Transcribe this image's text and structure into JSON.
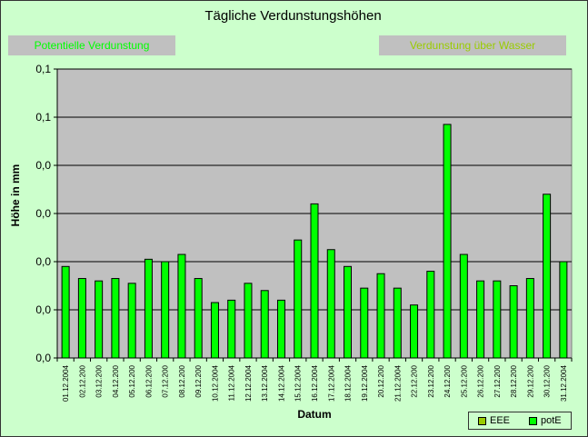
{
  "chart_data": {
    "type": "bar",
    "title": "Tägliche Verdunstungshöhen",
    "xlabel": "Datum",
    "ylabel": "Höhe in mm",
    "annotations": [
      "Potentielle Verdunstung",
      "Verdunstung über Wasser"
    ],
    "ylim": [
      0,
      0.12
    ],
    "ytick_labels": [
      "0,0",
      "0,0",
      "0,0",
      "0,0",
      "0,0",
      "0,1",
      "0,1"
    ],
    "grid": true,
    "legend_position": "bottom-right",
    "categories": [
      "01.12.2004",
      "02.12.200",
      "03.12.200",
      "04.12.200",
      "05.12.200",
      "06.12.200",
      "07.12.200",
      "08.12.200",
      "09.12.200",
      "10.12.2004",
      "11.12.2004",
      "12.12.2004",
      "13.12.2004",
      "14.12.2004",
      "15.12.2004",
      "16.12.2004",
      "17.12.2004",
      "18.12.2004",
      "19.12.2004",
      "20.12.200",
      "21.12.2004",
      "22.12.200",
      "23.12.200",
      "24.12.200",
      "25.12.200",
      "26.12.200",
      "27.12.200",
      "28.12.200",
      "29.12.200",
      "30.12.200",
      "31.12.2004"
    ],
    "series": [
      {
        "name": "EEE",
        "color": "#99cc00",
        "values": [
          0,
          0,
          0,
          0,
          0,
          0,
          0,
          0,
          0,
          0,
          0,
          0,
          0,
          0,
          0,
          0,
          0,
          0,
          0,
          0,
          0,
          0,
          0,
          0,
          0,
          0,
          0,
          0,
          0,
          0,
          0
        ]
      },
      {
        "name": "potE",
        "color": "#00ff00",
        "values": [
          0.038,
          0.033,
          0.032,
          0.033,
          0.031,
          0.041,
          0.04,
          0.043,
          0.033,
          0.023,
          0.024,
          0.031,
          0.028,
          0.024,
          0.049,
          0.064,
          0.045,
          0.038,
          0.029,
          0.035,
          0.029,
          0.022,
          0.036,
          0.097,
          0.043,
          0.032,
          0.032,
          0.03,
          0.033,
          0.068,
          0.04
        ]
      }
    ]
  },
  "legend": {
    "items": [
      {
        "label": "EEE"
      },
      {
        "label": "potE"
      }
    ]
  },
  "colors": {
    "background": "#ccffcc",
    "plot_area": "#c0c0c0",
    "bar": "#00ff00",
    "bar_stroke": "#000000"
  }
}
